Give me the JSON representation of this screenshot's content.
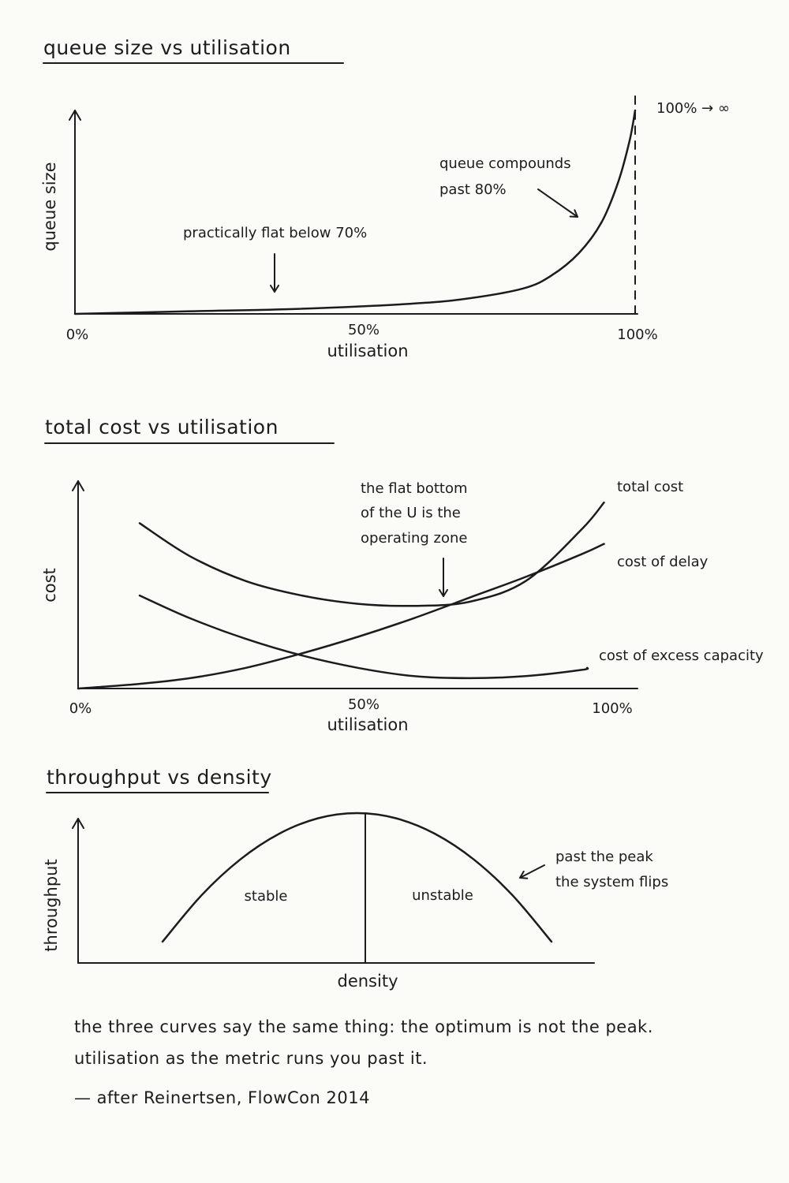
{
  "colors": {
    "ink": "#1c1c1c",
    "paper": "#fbfbf8"
  },
  "chart_data": [
    {
      "type": "line",
      "title": "queue size vs utilisation",
      "xlabel": "utilisation",
      "ylabel": "queue size",
      "xticks": [
        "0%",
        "50%",
        "100%"
      ],
      "xlim": [
        0,
        100
      ],
      "asymptote_x": 100,
      "asymptote_label": "100% → ∞",
      "series": [
        {
          "x": [
            0,
            20,
            40,
            60,
            70,
            80,
            85,
            90,
            94,
            97,
            99,
            100
          ],
          "y": [
            0,
            0.5,
            1,
            2,
            3,
            5,
            7.5,
            12,
            18,
            26,
            34,
            40
          ]
        }
      ],
      "annotations": [
        {
          "text": "practically flat below 70%"
        },
        {
          "text": "queue compounds",
          "text2": "past 80%"
        }
      ]
    },
    {
      "type": "line",
      "title": "total cost vs utilisation",
      "xlabel": "utilisation",
      "ylabel": "cost",
      "xticks": [
        "0%",
        "50%",
        "100%"
      ],
      "xlim": [
        0,
        100
      ],
      "series": [
        {
          "name": "total cost",
          "x": [
            11,
            20,
            30,
            40,
            50,
            60,
            70,
            80,
            90,
            94
          ],
          "y": [
            8,
            6.4,
            5.2,
            4.5,
            4.1,
            4.0,
            4.2,
            5.2,
            7.7,
            9.0
          ]
        },
        {
          "name": "cost of delay",
          "x": [
            0,
            10,
            20,
            30,
            40,
            50,
            60,
            70,
            80,
            90,
            94
          ],
          "y": [
            0,
            0.2,
            0.5,
            1.0,
            1.7,
            2.5,
            3.4,
            4.4,
            5.4,
            6.5,
            7.0
          ]
        },
        {
          "name": "cost of excess capacity",
          "x": [
            11,
            20,
            30,
            40,
            50,
            60,
            70,
            80,
            90,
            91
          ],
          "y": [
            4.5,
            3.4,
            2.4,
            1.6,
            1.0,
            0.6,
            0.5,
            0.6,
            0.9,
            1.0
          ]
        }
      ],
      "annotations": [
        {
          "lines": [
            "the flat bottom",
            "of the U is the",
            "operating zone"
          ]
        }
      ]
    },
    {
      "type": "line",
      "title": "throughput vs density",
      "xlabel": "density",
      "ylabel": "throughput",
      "regions": [
        "stable",
        "unstable"
      ],
      "series": [
        {
          "x": [
            0,
            10,
            20,
            30,
            40,
            50,
            60,
            70,
            80,
            90,
            100
          ],
          "y": [
            0.0,
            0.36,
            0.64,
            0.84,
            0.96,
            1.0,
            0.96,
            0.84,
            0.64,
            0.36,
            0.0
          ]
        }
      ],
      "annotations": [
        {
          "text": "past the peak",
          "text2": "the system flips"
        }
      ]
    }
  ],
  "caption": {
    "line1": "the three curves say the same thing: the optimum is not the peak.",
    "line2": "utilisation as the metric runs you past it."
  },
  "credit": "— after Reinertsen, FlowCon 2014"
}
